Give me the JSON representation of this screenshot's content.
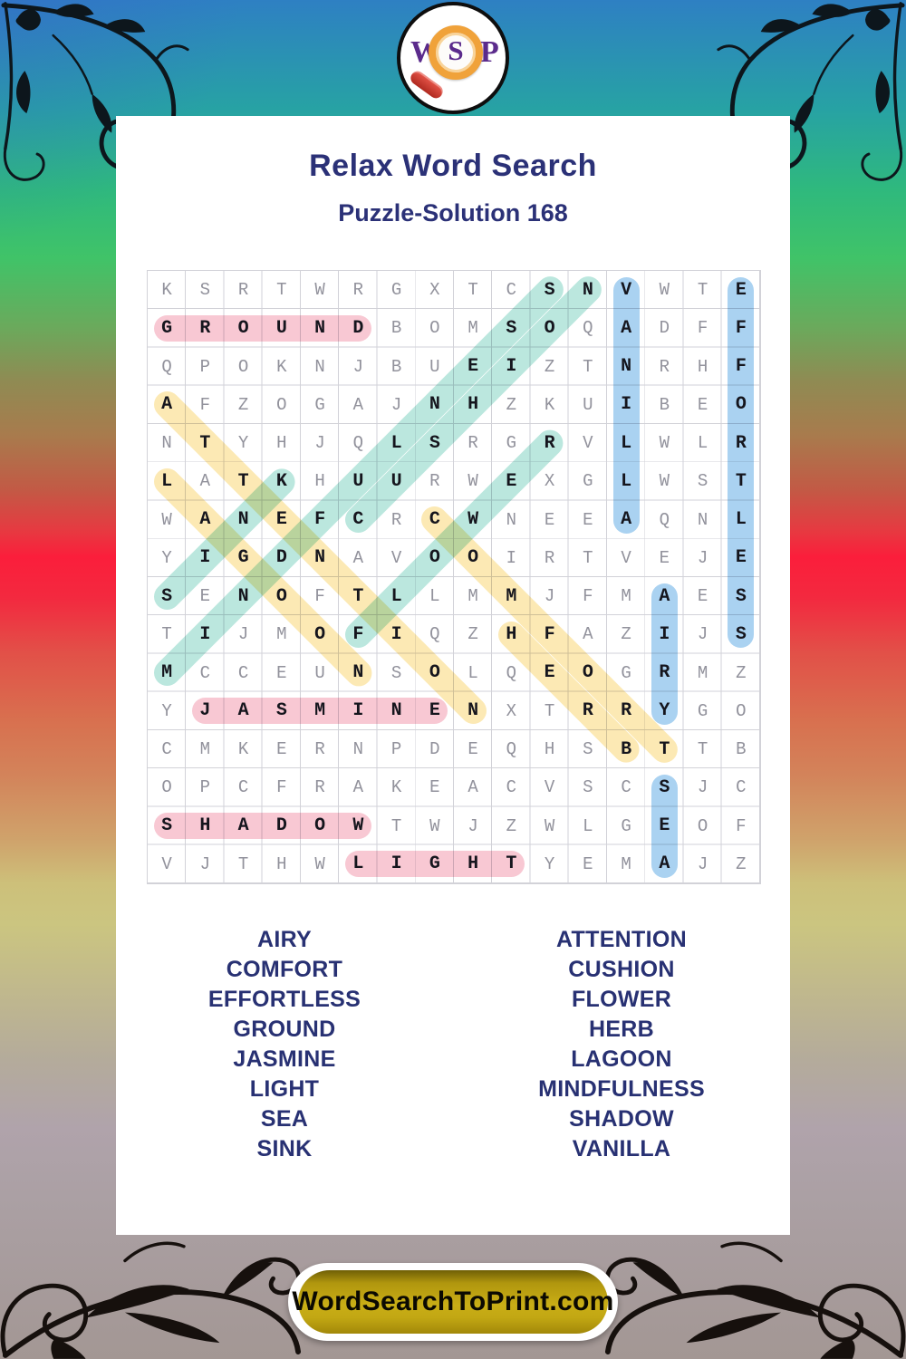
{
  "page": {
    "title": "Relax Word Search",
    "subtitle": "Puzzle-Solution 168"
  },
  "logo": {
    "letter_w": "W",
    "letter_s": "S",
    "letter_p": "P"
  },
  "grid": {
    "size": 16,
    "rows": [
      "KSRTWRGXTCSNVWTE",
      "GROUNDBOMSOQADFF",
      "QPOKNJBUEIZTNRHF",
      "AFZOGAJNHZKUIBEO",
      "NTYHJQLSRGRVLWLR",
      "LATKHUURWEXGLWST",
      "WANEFCRCWNEEAQNL",
      "YIGDNAVOOIRTVEJE",
      "SENOFTLLMMJFMAES",
      "TIJMOFIQZHFAZIJS",
      "MCCEUNSOLQEOGRMZ",
      "YJASMINENXTRRYGO",
      "CMKERNPDEQHSBTTB",
      "OPCFRAKEACVSCSJC",
      "SHADOWTWJZWLGEOF",
      "VJTHWLIGHTYEMAJZ"
    ],
    "highlight_colors": {
      "pink": "#f8c8d3",
      "blue": "#aad2f1",
      "teal": "#bbe7de",
      "yellow": "#fce9b4"
    },
    "words": [
      {
        "word": "GROUND",
        "row": 2,
        "col": 1,
        "dir": "right",
        "color": "pink"
      },
      {
        "word": "JASMINE",
        "row": 12,
        "col": 2,
        "dir": "right",
        "color": "pink"
      },
      {
        "word": "SHADOW",
        "row": 15,
        "col": 1,
        "dir": "right",
        "color": "pink"
      },
      {
        "word": "LIGHT",
        "row": 16,
        "col": 6,
        "dir": "right",
        "color": "pink"
      },
      {
        "word": "VANILLA",
        "row": 1,
        "col": 13,
        "dir": "down",
        "color": "blue"
      },
      {
        "word": "EFFORTLESS",
        "row": 1,
        "col": 16,
        "dir": "down",
        "color": "blue"
      },
      {
        "word": "AIRY",
        "row": 9,
        "col": 14,
        "dir": "down",
        "color": "blue"
      },
      {
        "word": "SEA",
        "row": 14,
        "col": 14,
        "dir": "down",
        "color": "blue"
      },
      {
        "word": "MINDFULNESS",
        "row": 11,
        "col": 1,
        "dir": "up-right",
        "color": "teal"
      },
      {
        "word": "CUSHION",
        "row": 7,
        "col": 6,
        "dir": "up-right",
        "color": "teal"
      },
      {
        "word": "FLOWER",
        "row": 10,
        "col": 6,
        "dir": "up-right",
        "color": "teal"
      },
      {
        "word": "SINK",
        "row": 9,
        "col": 1,
        "dir": "up-right",
        "color": "teal"
      },
      {
        "word": "ATTENTION",
        "row": 4,
        "col": 1,
        "dir": "down-right",
        "color": "yellow"
      },
      {
        "word": "LAGOON",
        "row": 6,
        "col": 1,
        "dir": "down-right",
        "color": "yellow"
      },
      {
        "word": "COMFORT",
        "row": 7,
        "col": 8,
        "dir": "down-right",
        "color": "yellow"
      },
      {
        "word": "HERB",
        "row": 10,
        "col": 10,
        "dir": "down-right",
        "color": "yellow"
      }
    ]
  },
  "word_list": {
    "left": [
      "AIRY",
      "COMFORT",
      "EFFORTLESS",
      "GROUND",
      "JASMINE",
      "LIGHT",
      "SEA",
      "SINK"
    ],
    "right": [
      "ATTENTION",
      "CUSHION",
      "FLOWER",
      "HERB",
      "LAGOON",
      "MINDFULNESS",
      "SHADOW",
      "VANILLA"
    ]
  },
  "footer": {
    "site": "WordSearchToPrint.com"
  }
}
